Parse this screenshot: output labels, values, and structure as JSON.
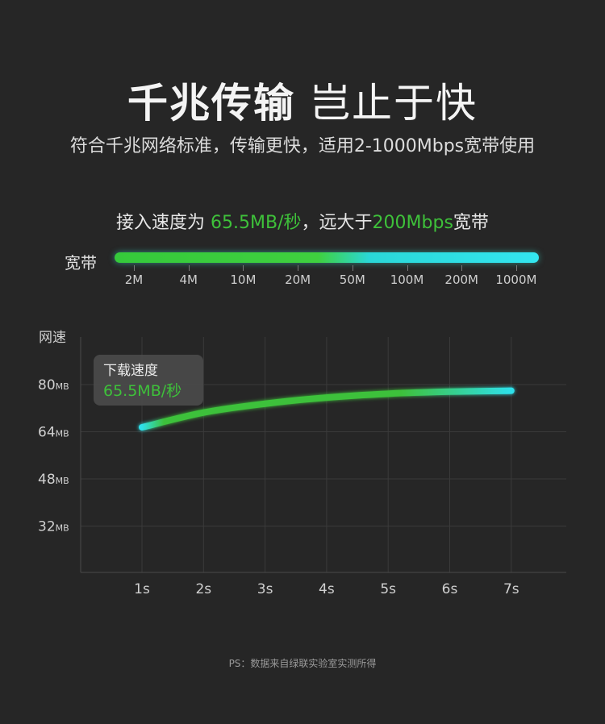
{
  "header": {
    "title_main": "千兆传输",
    "title_sub": "岂止于快",
    "subtitle": "符合千兆网络标准，传输更快，适用2-1000Mbps宽带使用"
  },
  "speed_line": {
    "prefix": "接入速度为 ",
    "speed": "65.5MB/秒",
    "middle": "，远大于",
    "ref": "200Mbps",
    "suffix": "宽带"
  },
  "bandwidth_scale": {
    "label": "宽带",
    "ticks": [
      "2M",
      "4M",
      "10M",
      "20M",
      "50M",
      "100M",
      "200M",
      "1000M"
    ]
  },
  "chart_data": {
    "type": "line",
    "ylabel": "网速",
    "ytick_labels": [
      {
        "value": 80,
        "num": "80",
        "unit": "MB"
      },
      {
        "value": 64,
        "num": "64",
        "unit": "MB"
      },
      {
        "value": 48,
        "num": "48",
        "unit": "MB"
      },
      {
        "value": 32,
        "num": "32",
        "unit": "MB"
      }
    ],
    "x": [
      "1s",
      "2s",
      "3s",
      "4s",
      "5s",
      "6s",
      "7s"
    ],
    "x_values": [
      1,
      2,
      3,
      4,
      5,
      6,
      7
    ],
    "values": [
      65.5,
      70.5,
      73.5,
      75.6,
      76.9,
      77.6,
      77.9
    ],
    "ylim": [
      16,
      80
    ],
    "xlim": [
      0,
      7.9
    ],
    "grid": true,
    "callout": {
      "title": "下载速度",
      "value": "65.5MB/秒"
    },
    "colors": {
      "start": "#3ec13a",
      "end": "#2ee0ea"
    }
  },
  "footnote": "PS：数据来自绿联实验室实测所得"
}
